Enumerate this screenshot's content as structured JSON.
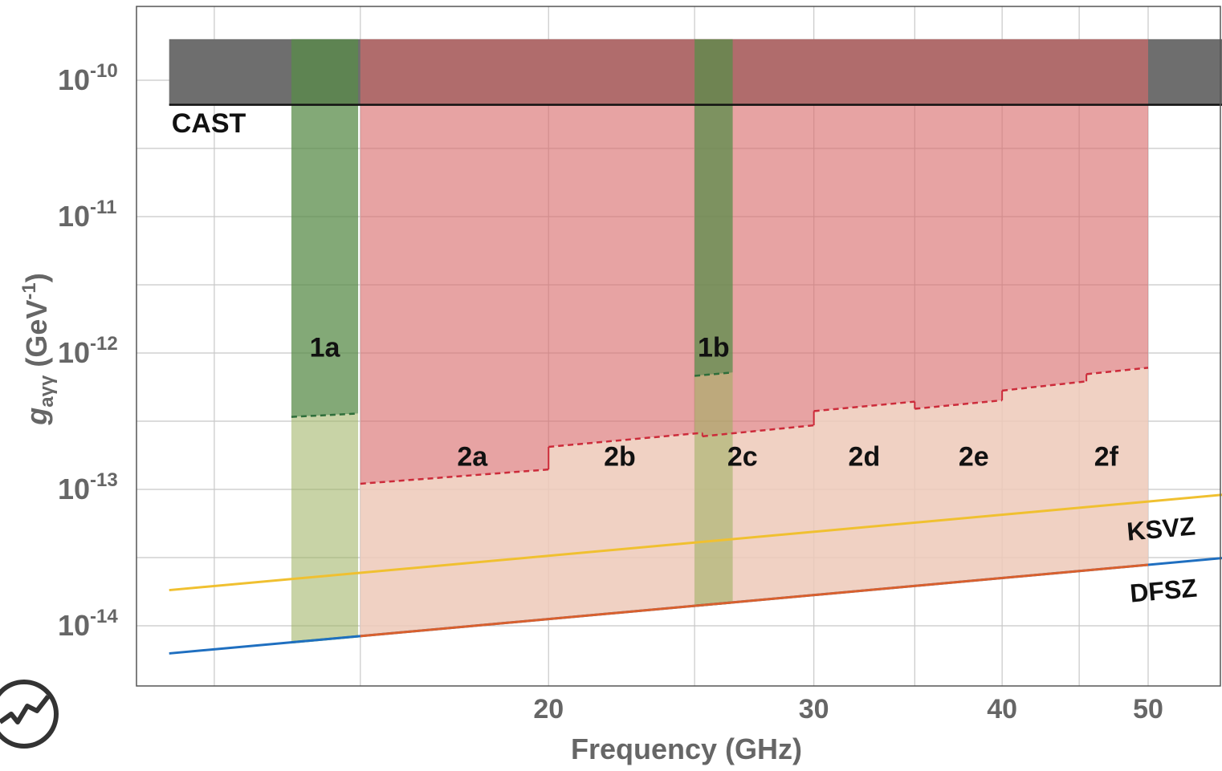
{
  "chart_data": {
    "type": "area",
    "xlabel": "Frequency (GHz)",
    "ylabel": {
      "g": "g",
      "sub": "aγγ",
      "rest": " (GeV",
      "sup": "-1",
      "close": ")"
    },
    "xscale": "log",
    "yscale": "log",
    "xlim": [
      11.0,
      56.0
    ],
    "ylim": [
      4e-15,
      4e-10
    ],
    "grid": true,
    "x_ticks": [
      {
        "value": 20,
        "label": "20"
      },
      {
        "value": 30,
        "label": "30"
      },
      {
        "value": 40,
        "label": "40"
      },
      {
        "value": 50,
        "label": "50"
      }
    ],
    "y_ticks": [
      {
        "value": 1e-10,
        "base": "10",
        "exp": "-10"
      },
      {
        "value": 1e-11,
        "base": "10",
        "exp": "-11"
      },
      {
        "value": 1e-12,
        "base": "10",
        "exp": "-12"
      },
      {
        "value": 1e-13,
        "base": "10",
        "exp": "-13"
      },
      {
        "value": 1e-14,
        "base": "10",
        "exp": "-14"
      }
    ],
    "cast": {
      "label": "CAST",
      "x": [
        11.2,
        50.0
      ],
      "x_right_extension": 56.0,
      "y_limit": 6.6e-11,
      "y_top": 2e-10,
      "color": "#6e6e6e"
    },
    "red_region": {
      "color": "#d96a6a",
      "segments": [
        {
          "name": "2a",
          "x": [
            15.0,
            20.0
          ],
          "y": [
            1.1e-13,
            1.4e-13
          ]
        },
        {
          "name": "2b",
          "x": [
            20.0,
            25.3
          ],
          "y": [
            2.05e-13,
            2.6e-13
          ]
        },
        {
          "name": "2c",
          "x": [
            25.3,
            30.0
          ],
          "y": [
            2.45e-13,
            2.95e-13
          ]
        },
        {
          "name": "2d",
          "x": [
            30.0,
            35.0
          ],
          "y": [
            3.75e-13,
            4.4e-13
          ]
        },
        {
          "name": "2e",
          "x": [
            35.0,
            40.0
          ],
          "y": [
            3.9e-13,
            4.5e-13
          ]
        },
        {
          "name": "2f_lo",
          "x": [
            40.0,
            45.5
          ],
          "y": [
            5.3e-13,
            6.2e-13
          ]
        },
        {
          "name": "2f_hi",
          "x": [
            45.5,
            50.0
          ],
          "y": [
            7e-13,
            7.8e-13
          ]
        }
      ],
      "labels": [
        {
          "text": "2a",
          "x": 17.8,
          "y": 1.75e-13
        },
        {
          "text": "2b",
          "x": 22.3,
          "y": 1.75e-13
        },
        {
          "text": "2c",
          "x": 26.9,
          "y": 1.75e-13
        },
        {
          "text": "2d",
          "x": 32.4,
          "y": 1.75e-13
        },
        {
          "text": "2e",
          "x": 38.3,
          "y": 1.75e-13
        },
        {
          "text": "2f",
          "x": 46.9,
          "y": 1.75e-13
        }
      ]
    },
    "green_bands": [
      {
        "name": "1a",
        "x": [
          13.5,
          14.95
        ],
        "y_limit": [
          3.4e-13,
          3.6e-13
        ],
        "label_y": 1.05e-12
      },
      {
        "name": "1b",
        "x": [
          25.0,
          26.5
        ],
        "y_limit": [
          6.8e-13,
          7.2e-13
        ],
        "label_y": 1.05e-12
      }
    ],
    "green_color": "#5a8c4a",
    "peach_color": "#edc9b8",
    "ksvz": {
      "label": "KSVZ",
      "color": "#f0c030",
      "y_at_10ghz": 1.63e-14,
      "slope_per_ghz": 1.63e-15
    },
    "dfsz": {
      "label": "DFSZ",
      "color": "#1f6fc0",
      "y_at_10ghz": 5.6e-15,
      "slope_per_ghz": 5.6e-16
    },
    "model_band_color": "#d9602e"
  }
}
